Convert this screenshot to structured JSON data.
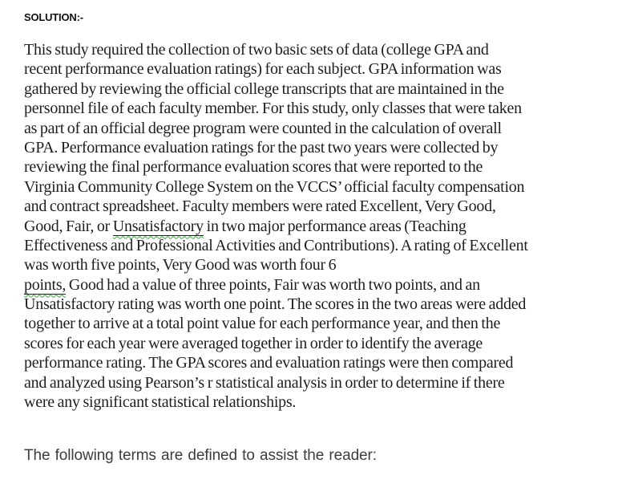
{
  "heading": "SOLUTION:-",
  "paragraph": {
    "lines": [
      "This study required the collection of two basic sets of data (college GPA and",
      "recent performance evaluation ratings) for each subject. GPA information was",
      "gathered by reviewing the official college transcripts that are maintained in the",
      "personnel file of each faculty member. For this study, only classes that were taken",
      "as part of an official degree program were counted in the calculation of overall",
      "GPA. Performance evaluation ratings for the past two years were collected by",
      "reviewing the final performance evaluation scores that were reported to the",
      "Virginia Community College System on the VCCS’ official faculty compensation",
      "and contract spreadsheet. Faculty members were rated Excellent, Very Good,",
      "Good, Fair, or Unsatisfactory in two major performance areas (Teaching",
      "Effectiveness and Professional Activities and Contributions). A rating of Excellent",
      "was worth five points, Very Good was worth four 6",
      "points, Good had a value of three points, Fair was worth two points, and an",
      "Unsatisfactory rating was worth one point. The scores in the two areas were added",
      "together to arrive at a total point value for each performance year, and then the",
      "scores for each year were averaged together in order to identify the average",
      "performance rating. The GPA scores and evaluation ratings were then compared",
      "and analyzed using Pearson’s r statistical analysis in order to determine if there",
      "were any significant statistical relationships."
    ],
    "segments": {
      "line10_pre": "Good, Fair, or ",
      "line10_word": "Unsatisfactory",
      "line10_post": " in two major performance areas (Teaching",
      "line13_word": "points,",
      "line13_post": " Good had a value of three points, Fair was worth two points, and an"
    }
  },
  "footer": "The following terms are defined to assist the reader:",
  "colors": {
    "background": "#ffffff",
    "body_text": "#1e1e1e",
    "footer_text": "#3c3c3c",
    "spellcheck_squiggle": "#3aa343"
  }
}
